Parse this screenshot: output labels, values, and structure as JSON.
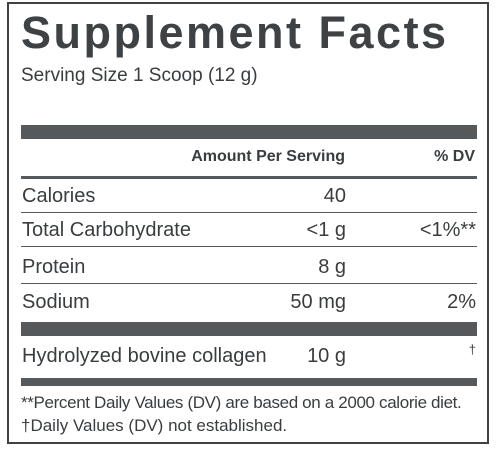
{
  "label": {
    "title": "Supplement Facts",
    "serving_size": "Serving Size 1 Scoop (12 g)",
    "header": {
      "amount": "Amount Per Serving",
      "dv": "% DV"
    },
    "rows": [
      {
        "name": "Calories",
        "amount": "40",
        "dv": ""
      },
      {
        "name": "Total Carbohydrate",
        "amount": "<1 g",
        "dv": "<1%**"
      },
      {
        "name": "Protein",
        "amount": "8 g",
        "dv": ""
      },
      {
        "name": "Sodium",
        "amount": "50 mg",
        "dv": "2%"
      }
    ],
    "ingredient": {
      "name": "Hydrolyzed bovine collagen",
      "amount": "10 g",
      "dv": "†"
    },
    "footnotes": [
      "**Percent Daily Values (DV) are based on a 2000 calorie diet.",
      "†Daily Values (DV) not established."
    ],
    "colors": {
      "text": "#3a3d3f",
      "bars": "#55595c",
      "border": "#3f4244",
      "background": "#ffffff"
    }
  }
}
